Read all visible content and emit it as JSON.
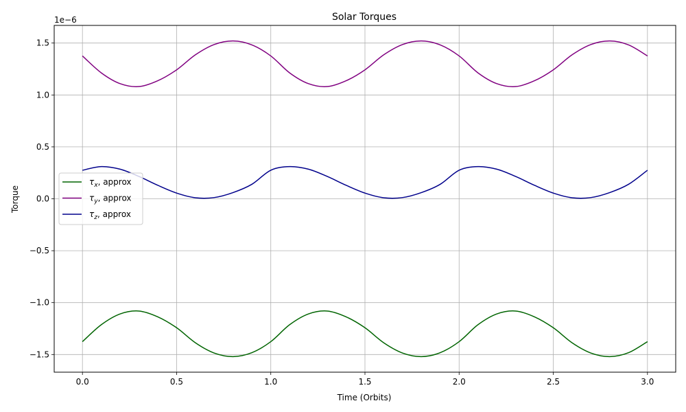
{
  "chart_data": {
    "type": "line",
    "title": "Solar Torques",
    "xlabel": "Time (Orbits)",
    "ylabel": "Torque",
    "y_offset_label": "1e−6",
    "xlim": [
      -0.15,
      3.15
    ],
    "ylim": [
      -1.67,
      1.67
    ],
    "grid": true,
    "legend_position": "center-left",
    "x_ticks": [
      0.0,
      0.5,
      1.0,
      1.5,
      2.0,
      2.5,
      3.0
    ],
    "x_tick_labels": [
      "0.0",
      "0.5",
      "1.0",
      "1.5",
      "2.0",
      "2.5",
      "3.0"
    ],
    "y_ticks": [
      -1.5,
      -1.0,
      -0.5,
      0.0,
      0.5,
      1.0,
      1.5
    ],
    "y_tick_labels": [
      "−1.5",
      "−1.0",
      "−0.5",
      "0.0",
      "0.5",
      "1.0",
      "1.5"
    ],
    "x": [
      0.0,
      0.1,
      0.2,
      0.3,
      0.4,
      0.5,
      0.6,
      0.7,
      0.8,
      0.9,
      1.0,
      1.1,
      1.2,
      1.3,
      1.4,
      1.5,
      1.6,
      1.7,
      1.8,
      1.9,
      2.0,
      2.1,
      2.2,
      2.3,
      2.4,
      2.5,
      2.6,
      2.7,
      2.8,
      2.9,
      3.0
    ],
    "series": [
      {
        "name_symbol": "τ",
        "name_sub": "x",
        "name_suffix": ", approx",
        "color": "#006400",
        "values": [
          -1.376,
          -1.213,
          -1.109,
          -1.081,
          -1.137,
          -1.242,
          -1.387,
          -1.486,
          -1.52,
          -1.482,
          -1.376,
          -1.213,
          -1.109,
          -1.081,
          -1.137,
          -1.242,
          -1.387,
          -1.486,
          -1.52,
          -1.482,
          -1.376,
          -1.213,
          -1.109,
          -1.081,
          -1.137,
          -1.242,
          -1.387,
          -1.486,
          -1.52,
          -1.482,
          -1.376
        ]
      },
      {
        "name_symbol": "τ",
        "name_sub": "y",
        "name_suffix": ", approx",
        "color": "#800080",
        "values": [
          1.376,
          1.213,
          1.109,
          1.081,
          1.137,
          1.242,
          1.387,
          1.486,
          1.52,
          1.482,
          1.376,
          1.213,
          1.109,
          1.081,
          1.137,
          1.242,
          1.387,
          1.486,
          1.52,
          1.482,
          1.376,
          1.213,
          1.109,
          1.081,
          1.137,
          1.242,
          1.387,
          1.486,
          1.52,
          1.482,
          1.376
        ]
      },
      {
        "name_symbol": "τ",
        "name_sub": "z",
        "name_suffix": ", approx",
        "color": "#00008B",
        "values": [
          0.275,
          0.31,
          0.285,
          0.215,
          0.13,
          0.055,
          0.01,
          0.012,
          0.06,
          0.14,
          0.275,
          0.31,
          0.285,
          0.215,
          0.13,
          0.055,
          0.01,
          0.012,
          0.06,
          0.14,
          0.275,
          0.31,
          0.285,
          0.215,
          0.13,
          0.055,
          0.01,
          0.012,
          0.06,
          0.14,
          0.275
        ]
      }
    ]
  }
}
